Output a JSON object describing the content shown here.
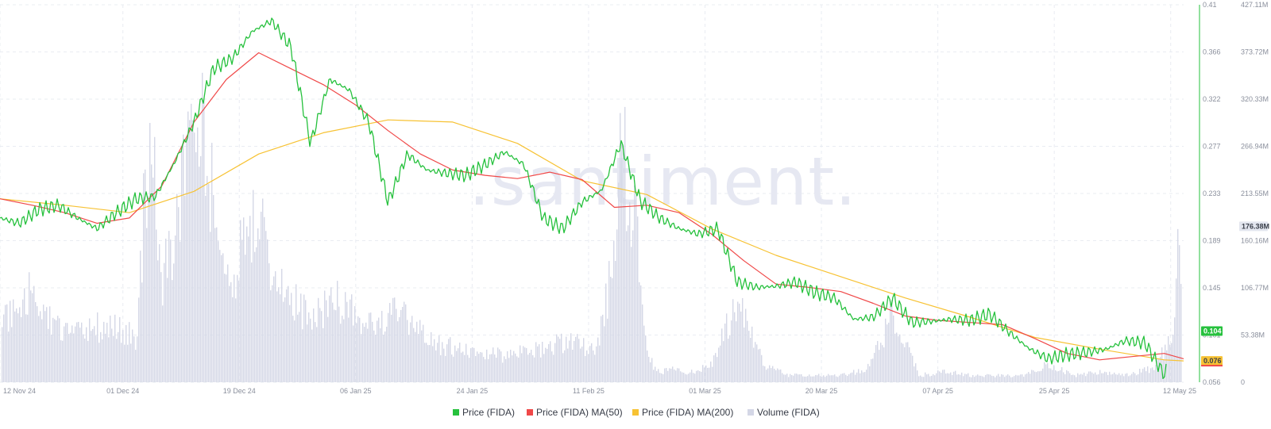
{
  "chart_data": {
    "type": "line",
    "watermark": ".santiment.",
    "x_labels": [
      "12 Nov 24",
      "01 Dec 24",
      "19 Dec 24",
      "06 Jan 25",
      "24 Jan 25",
      "11 Feb 25",
      "01 Mar 25",
      "20 Mar 25",
      "07 Apr 25",
      "25 Apr 25",
      "12 May 25"
    ],
    "price_axis": {
      "ticks": [
        "0.41",
        "0.366",
        "0.322",
        "0.277",
        "0.233",
        "0.189",
        "0.145",
        "0.101",
        "0.056"
      ],
      "min": 0.056,
      "max": 0.41
    },
    "volume_axis": {
      "ticks": [
        "427.11M",
        "373.72M",
        "320.33M",
        "266.94M",
        "213.55M",
        "160.16M",
        "106.77M",
        "53.38M",
        "0"
      ],
      "min": 0,
      "max": 427.11
    },
    "badges": {
      "volume": {
        "text": "176.38M",
        "value": 176.38
      },
      "price": {
        "text": "0.104",
        "value": 0.104
      },
      "ma200": {
        "text": "0.076",
        "value": 0.076
      }
    },
    "series": [
      {
        "name": "Price (FIDA)",
        "color": "#26c13d",
        "days": [
          0,
          3,
          6,
          9,
          12,
          15,
          18,
          21,
          24,
          27,
          30,
          33,
          36,
          39,
          42,
          45,
          48,
          51,
          54,
          57,
          60,
          63,
          66,
          69,
          72,
          75,
          78,
          81,
          84,
          87,
          90,
          93,
          96,
          99,
          102,
          105,
          108,
          111,
          114,
          117,
          120,
          123,
          126,
          129,
          132,
          135,
          138,
          141,
          144,
          147,
          150,
          153,
          156,
          159,
          162,
          165,
          168,
          171,
          174,
          177,
          180,
          183
        ],
        "values": [
          0.21,
          0.205,
          0.218,
          0.222,
          0.21,
          0.2,
          0.215,
          0.228,
          0.23,
          0.262,
          0.3,
          0.35,
          0.36,
          0.385,
          0.395,
          0.37,
          0.28,
          0.34,
          0.33,
          0.3,
          0.225,
          0.27,
          0.255,
          0.252,
          0.25,
          0.26,
          0.272,
          0.26,
          0.21,
          0.2,
          0.225,
          0.236,
          0.28,
          0.226,
          0.21,
          0.2,
          0.195,
          0.2,
          0.15,
          0.145,
          0.146,
          0.15,
          0.14,
          0.135,
          0.115,
          0.117,
          0.135,
          0.112,
          0.113,
          0.115,
          0.114,
          0.12,
          0.103,
          0.088,
          0.078,
          0.082,
          0.084,
          0.087,
          0.095,
          0.093,
          0.063,
          0.104
        ]
      },
      {
        "name": "Price (FIDA) MA(50)",
        "color": "#f04848",
        "days": [
          0,
          5,
          10,
          15,
          20,
          25,
          30,
          35,
          40,
          45,
          50,
          55,
          60,
          65,
          70,
          75,
          80,
          85,
          90,
          95,
          100,
          105,
          110,
          115,
          120,
          125,
          130,
          135,
          140,
          145,
          150,
          155,
          160,
          165,
          170,
          175,
          180,
          183
        ],
        "values": [
          0.228,
          0.222,
          0.215,
          0.205,
          0.21,
          0.24,
          0.3,
          0.34,
          0.365,
          0.35,
          0.335,
          0.316,
          0.292,
          0.27,
          0.255,
          0.25,
          0.247,
          0.253,
          0.246,
          0.22,
          0.222,
          0.215,
          0.195,
          0.17,
          0.148,
          0.145,
          0.141,
          0.13,
          0.118,
          0.114,
          0.112,
          0.11,
          0.097,
          0.083,
          0.077,
          0.08,
          0.083,
          0.078
        ]
      },
      {
        "name": "Price (FIDA) MA(200)",
        "color": "#f7c233",
        "days": [
          0,
          10,
          20,
          30,
          40,
          50,
          60,
          70,
          80,
          90,
          100,
          110,
          120,
          130,
          140,
          150,
          160,
          170,
          180,
          183
        ],
        "values": [
          0.228,
          0.222,
          0.215,
          0.235,
          0.27,
          0.29,
          0.302,
          0.3,
          0.28,
          0.245,
          0.232,
          0.2,
          0.175,
          0.155,
          0.135,
          0.117,
          0.098,
          0.087,
          0.077,
          0.076
        ]
      }
    ],
    "volume": {
      "name": "Volume (FIDA)",
      "color": "#d4d7e6",
      "days": [
        0,
        3,
        5,
        7,
        10,
        13,
        16,
        19,
        21,
        23,
        25,
        27,
        30,
        32,
        34,
        36,
        38,
        40,
        42,
        44,
        46,
        48,
        50,
        53,
        56,
        60,
        63,
        66,
        70,
        74,
        78,
        82,
        85,
        88,
        92,
        94,
        96,
        98,
        100,
        102,
        104,
        106,
        110,
        114,
        118,
        122,
        126,
        130,
        134,
        138,
        142,
        146,
        150,
        154,
        158,
        162,
        166,
        170,
        174,
        178,
        181,
        182,
        183
      ],
      "values": [
        110,
        90,
        140,
        100,
        70,
        70,
        85,
        75,
        65,
        380,
        140,
        230,
        400,
        320,
        180,
        160,
        220,
        240,
        160,
        150,
        110,
        90,
        110,
        120,
        75,
        100,
        90,
        60,
        50,
        40,
        40,
        45,
        55,
        60,
        45,
        130,
        340,
        240,
        35,
        15,
        20,
        12,
        25,
        120,
        25,
        10,
        10,
        10,
        20,
        100,
        10,
        15,
        10,
        10,
        10,
        25,
        10,
        15,
        10,
        20,
        60,
        190,
        176
      ]
    },
    "legend": [
      {
        "label": "Price (FIDA)",
        "color": "#26c13d"
      },
      {
        "label": "Price (FIDA) MA(50)",
        "color": "#f04848"
      },
      {
        "label": "Price (FIDA) MA(200)",
        "color": "#f7c233"
      },
      {
        "label": "Volume (FIDA)",
        "color": "#d4d7e6"
      }
    ]
  }
}
